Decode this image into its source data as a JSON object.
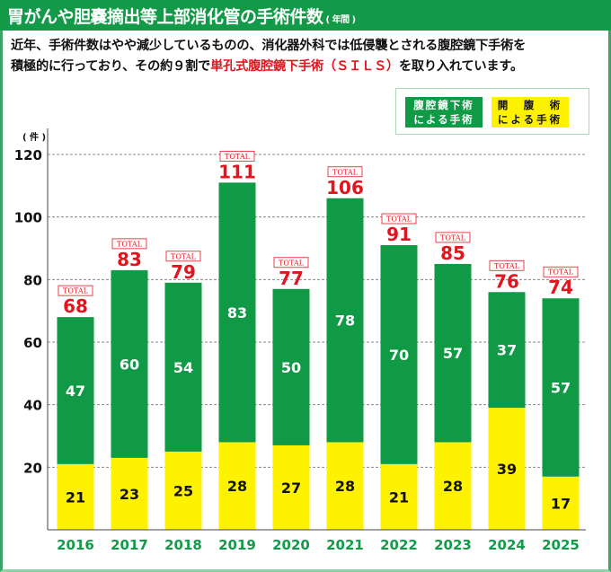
{
  "header": {
    "title": "胃がんや胆嚢摘出等上部消化管の手術件数",
    "subtitle": "( 年間 )"
  },
  "description": {
    "line1": "近年、手術件数はやや減少しているものの、消化器外科では低侵襲とされる腹腔鏡下手術を",
    "line2_pre": "積極的に行っており、その約９割で",
    "line2_highlight": "単孔式腹腔鏡下手術（ＳＩＬＳ）",
    "line2_post": "を取り入れています。"
  },
  "legend": {
    "laparoscopic_line1": "腹腔鏡下術",
    "laparoscopic_line2": "による手術",
    "open_line1": "開　腹　術",
    "open_line2": "による手術"
  },
  "colors": {
    "header_green": "#139a48",
    "laparoscopic": "#119a45",
    "open": "#fff200",
    "total_red": "#e3141d",
    "year_label": "#139a48"
  },
  "chart_data": {
    "type": "bar",
    "stacked": true,
    "title": "胃がんや胆嚢摘出等上部消化管の手術件数 (年間)",
    "xlabel": "",
    "ylabel": "(件)",
    "ylim": [
      0,
      120
    ],
    "yticks": [
      20,
      40,
      60,
      80,
      100,
      120
    ],
    "grid": "horizontal-dashed",
    "legend_position": "top-right",
    "categories": [
      "2016",
      "2017",
      "2018",
      "2019",
      "2020",
      "2021",
      "2022",
      "2023",
      "2024",
      "2025"
    ],
    "series": [
      {
        "name": "開腹術による手術",
        "color": "#fff200",
        "values": [
          21,
          23,
          25,
          28,
          27,
          28,
          21,
          28,
          39,
          17
        ]
      },
      {
        "name": "腹腔鏡下術による手術",
        "color": "#119a45",
        "values": [
          47,
          60,
          54,
          83,
          50,
          78,
          70,
          57,
          37,
          57
        ]
      }
    ],
    "totals": [
      68,
      83,
      79,
      111,
      77,
      106,
      91,
      85,
      76,
      74
    ],
    "total_tag": "TOTAL"
  }
}
